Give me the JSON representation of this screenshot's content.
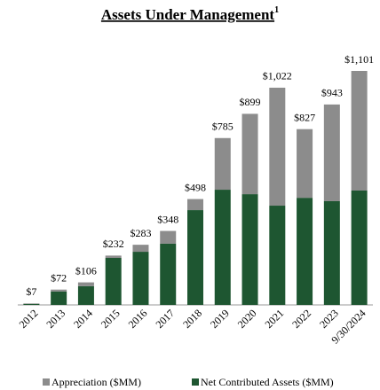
{
  "chart_data": {
    "type": "stacked_bar",
    "title": "Assets Under Management",
    "title_superscript": "1",
    "categories": [
      "2012",
      "2013",
      "2014",
      "2015",
      "2016",
      "2017",
      "2018",
      "2019",
      "2020",
      "2021",
      "2022",
      "2023",
      "9/30/2024"
    ],
    "series": [
      {
        "name": "Appreciation ($MM)",
        "color": "#8c8c8c",
        "values": [
          2,
          9,
          18,
          11,
          33,
          60,
          52,
          243,
          378,
          555,
          323,
          455,
          563
        ]
      },
      {
        "name": "Net Contributed Assets ($MM)",
        "color": "#1e5631",
        "values": [
          5,
          63,
          88,
          221,
          250,
          288,
          446,
          542,
          521,
          467,
          504,
          488,
          538
        ]
      }
    ],
    "totals": [
      7,
      72,
      106,
      232,
      283,
      348,
      498,
      785,
      899,
      1022,
      827,
      943,
      1101
    ],
    "total_labels": [
      "$7",
      "$72",
      "$106",
      "$232",
      "$283",
      "$348",
      "$498",
      "$785",
      "$899",
      "$1,022",
      "$827",
      "$943",
      "$1,101"
    ]
  }
}
